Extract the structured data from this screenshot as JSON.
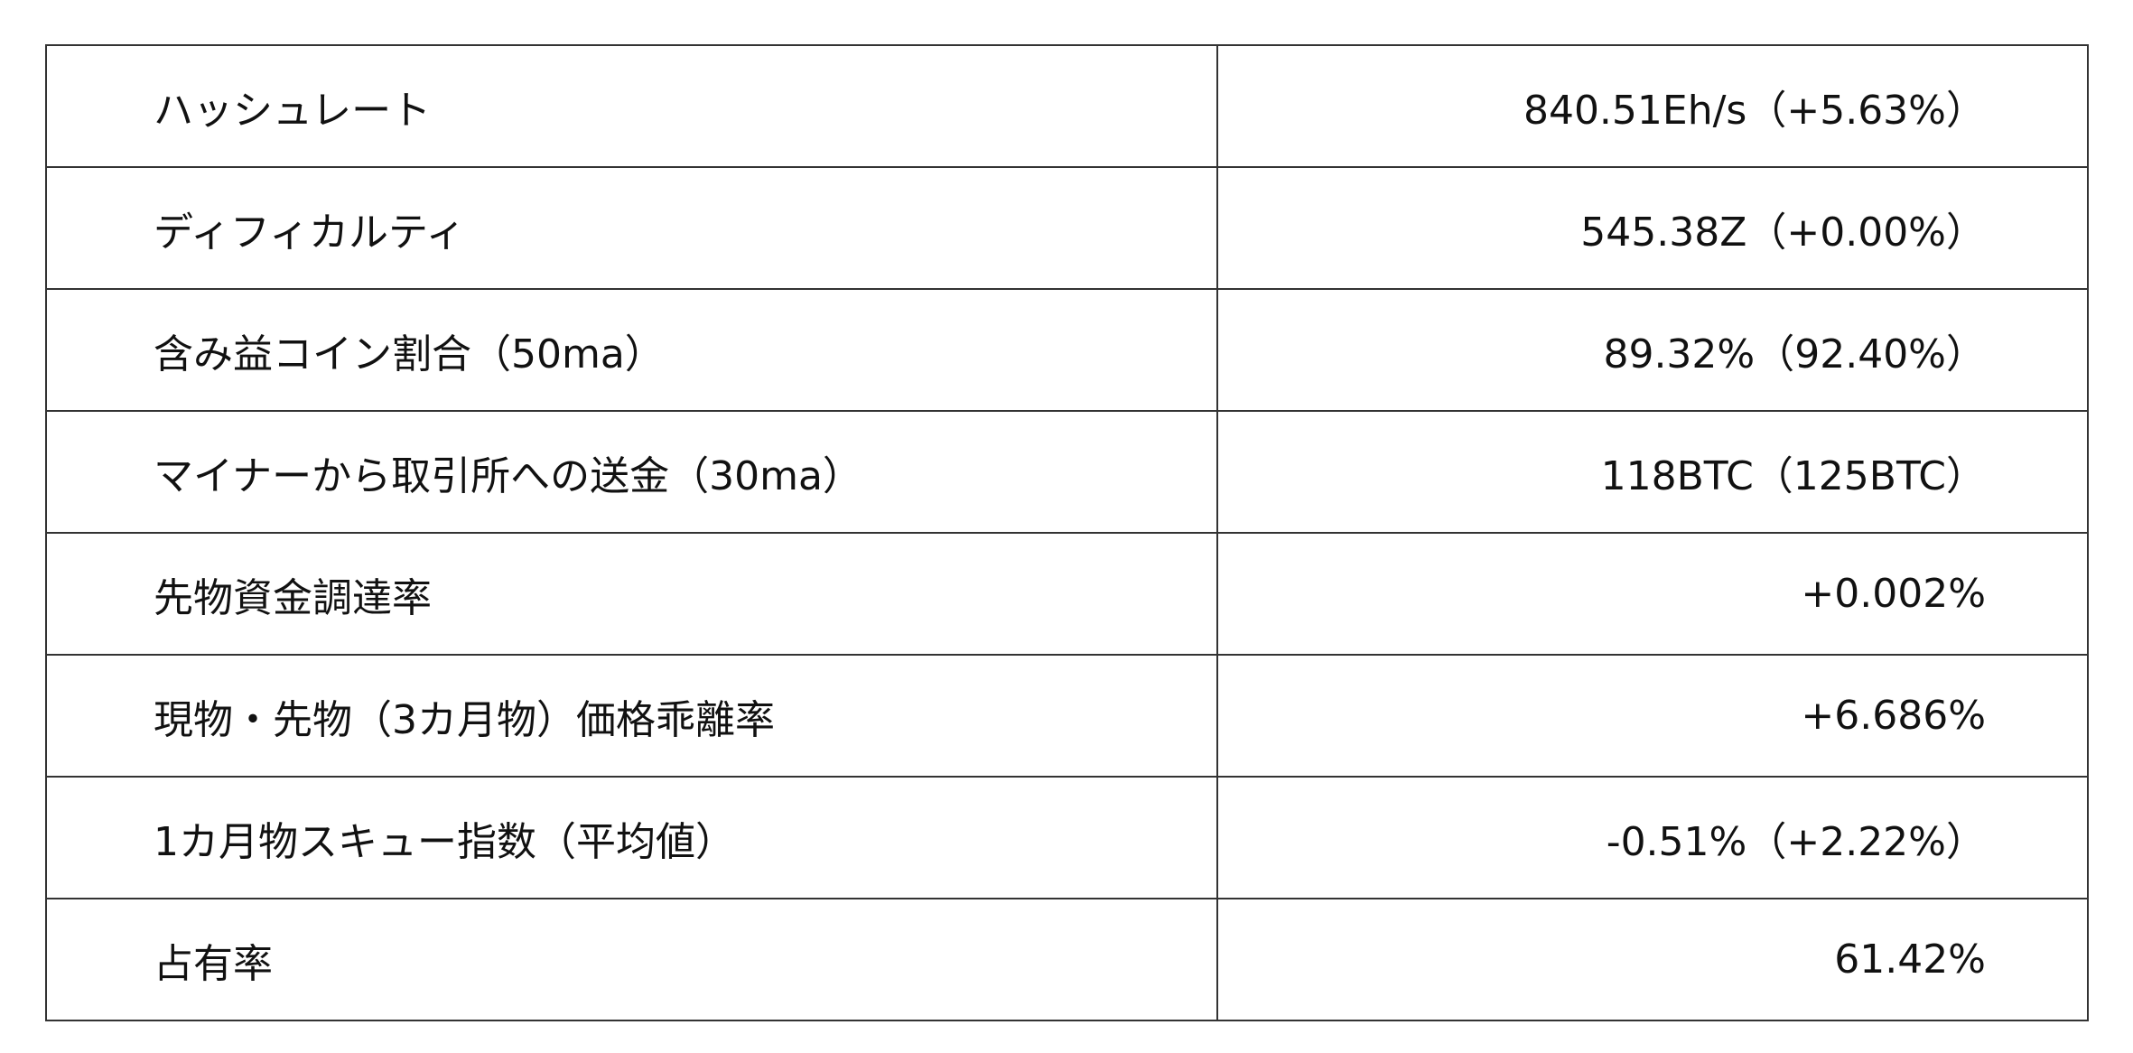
{
  "rows": [
    {
      "label": "ハッシュレート",
      "value": "840.51Eh/s（+5.63%）"
    },
    {
      "label": "ディフィカルティ",
      "value": "545.38Z（+0.00%）"
    },
    {
      "label": "含み益コイン割合（50ma）",
      "value": "89.32%（92.40%）"
    },
    {
      "label": "マイナーから取引所への送金（30ma）",
      "value": "118BTC（125BTC）"
    },
    {
      "label": "先物資金調達率",
      "value": "+0.002%"
    },
    {
      "label": "現物・先物（3カ月物）価格乖離率",
      "value": "+6.686%"
    },
    {
      "label": "1カ月物スキュー指数（平均値）",
      "value": "-0.51%（+2.22%）"
    },
    {
      "label": "占有率",
      "value": "61.42%"
    }
  ]
}
